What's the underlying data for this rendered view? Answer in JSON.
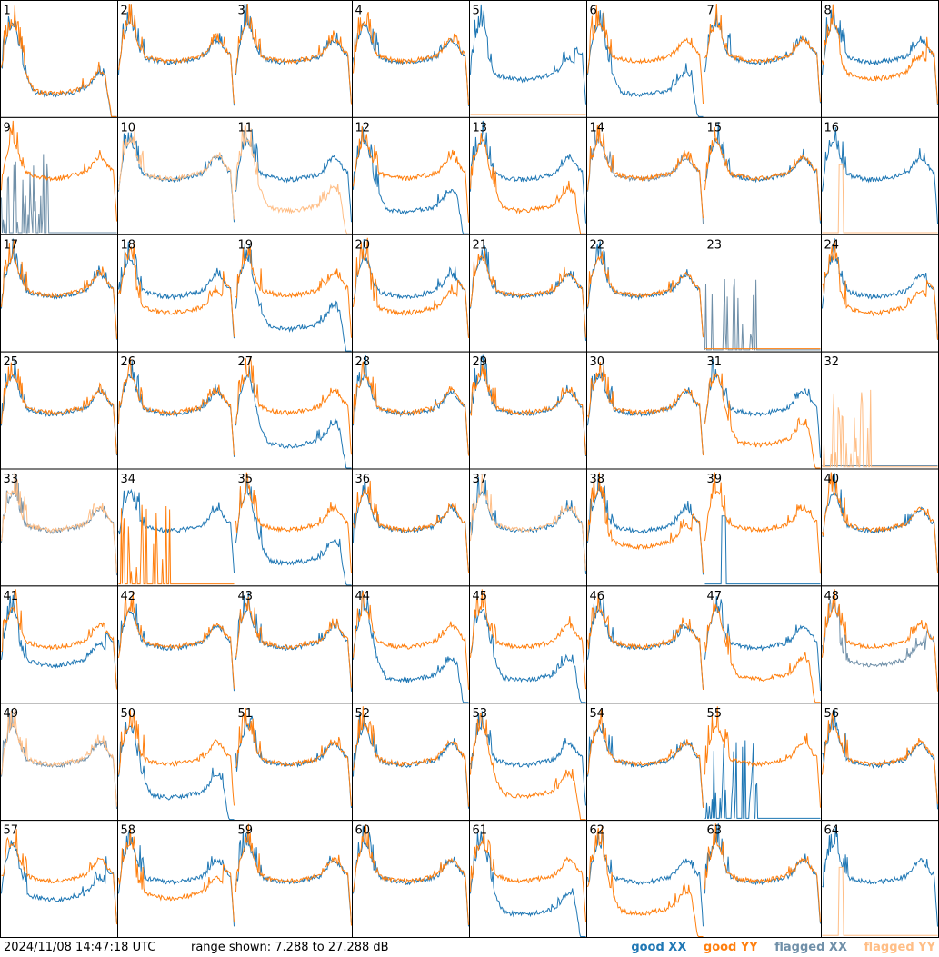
{
  "footer": {
    "timestamp": "2024/11/08 14:47:18 UTC",
    "range_text": "range shown: 7.288 to 27.288 dB"
  },
  "legend": {
    "good_xx": "good XX",
    "good_yy": "good YY",
    "flagged_xx": "flagged XX",
    "flagged_yy": "flagged YY"
  },
  "colors": {
    "good_xx": "#1f77b4",
    "good_yy": "#ff7f0e",
    "flagged_xx": "#6f8fa8",
    "flagged_yy": "#ffbe86"
  },
  "chart_data": {
    "type": "line",
    "ylim_db": [
      7.288,
      27.288
    ],
    "grid": "8x8 small multiples, no axes",
    "panels": [
      {
        "id": "1",
        "xx": "good",
        "yy": "good",
        "shape_xx": "drop",
        "shape_yy": "drop"
      },
      {
        "id": "2",
        "xx": "good",
        "yy": "good",
        "shape_xx": "normal",
        "shape_yy": "normal"
      },
      {
        "id": "3",
        "xx": "good",
        "yy": "good",
        "shape_xx": "normal",
        "shape_yy": "normal"
      },
      {
        "id": "4",
        "xx": "good",
        "yy": "good",
        "shape_xx": "normal",
        "shape_yy": "normal"
      },
      {
        "id": "5",
        "xx": "good",
        "yy": "flagged",
        "shape_xx": "dip",
        "shape_yy": "flat"
      },
      {
        "id": "6",
        "xx": "good",
        "yy": "good",
        "shape_xx": "drop",
        "shape_yy": "normal"
      },
      {
        "id": "7",
        "xx": "good",
        "yy": "good",
        "shape_xx": "normal",
        "shape_yy": "normal"
      },
      {
        "id": "8",
        "xx": "good",
        "yy": "good",
        "shape_xx": "normal",
        "shape_yy": "dip"
      },
      {
        "id": "9",
        "xx": "flagged",
        "yy": "good",
        "shape_xx": "spikes",
        "shape_yy": "normal"
      },
      {
        "id": "10",
        "xx": "good",
        "yy": "flagged",
        "shape_xx": "normal",
        "shape_yy": "normal"
      },
      {
        "id": "11",
        "xx": "good",
        "yy": "flagged",
        "shape_xx": "normal",
        "shape_yy": "drop"
      },
      {
        "id": "12",
        "xx": "good",
        "yy": "good",
        "shape_xx": "drop",
        "shape_yy": "normal"
      },
      {
        "id": "13",
        "xx": "good",
        "yy": "good",
        "shape_xx": "normal",
        "shape_yy": "drop"
      },
      {
        "id": "14",
        "xx": "flagged",
        "yy": "good",
        "shape_xx": "normal",
        "shape_yy": "normal"
      },
      {
        "id": "15",
        "xx": "good",
        "yy": "good",
        "shape_xx": "normal",
        "shape_yy": "normal"
      },
      {
        "id": "16",
        "xx": "good",
        "yy": "flagged",
        "shape_xx": "normal",
        "shape_yy": "spike"
      },
      {
        "id": "17",
        "xx": "good",
        "yy": "good",
        "shape_xx": "normal",
        "shape_yy": "normal"
      },
      {
        "id": "18",
        "xx": "good",
        "yy": "good",
        "shape_xx": "normal",
        "shape_yy": "dip"
      },
      {
        "id": "19",
        "xx": "good",
        "yy": "good",
        "shape_xx": "drop",
        "shape_yy": "normal"
      },
      {
        "id": "20",
        "xx": "good",
        "yy": "good",
        "shape_xx": "normal",
        "shape_yy": "dip"
      },
      {
        "id": "21",
        "xx": "good",
        "yy": "good",
        "shape_xx": "normal",
        "shape_yy": "normal"
      },
      {
        "id": "22",
        "xx": "good",
        "yy": "good",
        "shape_xx": "normal",
        "shape_yy": "normal"
      },
      {
        "id": "23",
        "xx": "flagged",
        "yy": "good",
        "shape_xx": "spikes",
        "shape_yy": "flat"
      },
      {
        "id": "24",
        "xx": "good",
        "yy": "good",
        "shape_xx": "normal",
        "shape_yy": "dip"
      },
      {
        "id": "25",
        "xx": "good",
        "yy": "good",
        "shape_xx": "normal",
        "shape_yy": "normal"
      },
      {
        "id": "26",
        "xx": "good",
        "yy": "good",
        "shape_xx": "normal",
        "shape_yy": "normal"
      },
      {
        "id": "27",
        "xx": "good",
        "yy": "good",
        "shape_xx": "drop",
        "shape_yy": "normal"
      },
      {
        "id": "28",
        "xx": "good",
        "yy": "good",
        "shape_xx": "normal",
        "shape_yy": "normal"
      },
      {
        "id": "29",
        "xx": "good",
        "yy": "good",
        "shape_xx": "normal",
        "shape_yy": "normal"
      },
      {
        "id": "30",
        "xx": "good",
        "yy": "good",
        "shape_xx": "normal",
        "shape_yy": "normal"
      },
      {
        "id": "31",
        "xx": "good",
        "yy": "good",
        "shape_xx": "normal",
        "shape_yy": "drop"
      },
      {
        "id": "32",
        "xx": "flagged",
        "yy": "flagged",
        "shape_xx": "flat",
        "shape_yy": "spikes"
      },
      {
        "id": "33",
        "xx": "flagged",
        "yy": "flagged",
        "shape_xx": "normal",
        "shape_yy": "normal"
      },
      {
        "id": "34",
        "xx": "good",
        "yy": "good",
        "shape_xx": "normal",
        "shape_yy": "spikes"
      },
      {
        "id": "35",
        "xx": "good",
        "yy": "good",
        "shape_xx": "drop",
        "shape_yy": "normal"
      },
      {
        "id": "36",
        "xx": "good",
        "yy": "good",
        "shape_xx": "normal",
        "shape_yy": "normal"
      },
      {
        "id": "37",
        "xx": "good",
        "yy": "flagged",
        "shape_xx": "normal",
        "shape_yy": "normal"
      },
      {
        "id": "38",
        "xx": "good",
        "yy": "good",
        "shape_xx": "normal",
        "shape_yy": "dip"
      },
      {
        "id": "39",
        "xx": "good",
        "yy": "good",
        "shape_xx": "spike",
        "shape_yy": "normal"
      },
      {
        "id": "40",
        "xx": "good",
        "yy": "good",
        "shape_xx": "normal",
        "shape_yy": "normal"
      },
      {
        "id": "41",
        "xx": "good",
        "yy": "good",
        "shape_xx": "dip",
        "shape_yy": "normal"
      },
      {
        "id": "42",
        "xx": "good",
        "yy": "good",
        "shape_xx": "normal",
        "shape_yy": "normal"
      },
      {
        "id": "43",
        "xx": "good",
        "yy": "good",
        "shape_xx": "normal",
        "shape_yy": "normal"
      },
      {
        "id": "44",
        "xx": "good",
        "yy": "good",
        "shape_xx": "drop",
        "shape_yy": "normal"
      },
      {
        "id": "45",
        "xx": "good",
        "yy": "good",
        "shape_xx": "drop",
        "shape_yy": "normal"
      },
      {
        "id": "46",
        "xx": "good",
        "yy": "good",
        "shape_xx": "normal",
        "shape_yy": "normal"
      },
      {
        "id": "47",
        "xx": "good",
        "yy": "good",
        "shape_xx": "normal",
        "shape_yy": "drop"
      },
      {
        "id": "48",
        "xx": "flagged",
        "yy": "good",
        "shape_xx": "dip",
        "shape_yy": "normal"
      },
      {
        "id": "49",
        "xx": "flagged",
        "yy": "flagged",
        "shape_xx": "normal",
        "shape_yy": "normal"
      },
      {
        "id": "50",
        "xx": "good",
        "yy": "good",
        "shape_xx": "drop",
        "shape_yy": "normal"
      },
      {
        "id": "51",
        "xx": "good",
        "yy": "good",
        "shape_xx": "normal",
        "shape_yy": "normal"
      },
      {
        "id": "52",
        "xx": "good",
        "yy": "good",
        "shape_xx": "normal",
        "shape_yy": "normal"
      },
      {
        "id": "53",
        "xx": "good",
        "yy": "good",
        "shape_xx": "normal",
        "shape_yy": "drop"
      },
      {
        "id": "54",
        "xx": "good",
        "yy": "good",
        "shape_xx": "normal",
        "shape_yy": "normal"
      },
      {
        "id": "55",
        "xx": "good",
        "yy": "good",
        "shape_xx": "spikes",
        "shape_yy": "normal"
      },
      {
        "id": "56",
        "xx": "good",
        "yy": "good",
        "shape_xx": "normal",
        "shape_yy": "normal"
      },
      {
        "id": "57",
        "xx": "good",
        "yy": "good",
        "shape_xx": "dip",
        "shape_yy": "normal"
      },
      {
        "id": "58",
        "xx": "good",
        "yy": "good",
        "shape_xx": "normal",
        "shape_yy": "dip"
      },
      {
        "id": "59",
        "xx": "good",
        "yy": "good",
        "shape_xx": "normal",
        "shape_yy": "normal"
      },
      {
        "id": "60",
        "xx": "good",
        "yy": "good",
        "shape_xx": "normal",
        "shape_yy": "normal"
      },
      {
        "id": "61",
        "xx": "good",
        "yy": "good",
        "shape_xx": "drop",
        "shape_yy": "normal"
      },
      {
        "id": "62",
        "xx": "good",
        "yy": "good",
        "shape_xx": "normal",
        "shape_yy": "drop"
      },
      {
        "id": "63",
        "xx": "good",
        "yy": "good",
        "shape_xx": "normal",
        "shape_yy": "normal"
      },
      {
        "id": "64",
        "xx": "good",
        "yy": "flagged",
        "shape_xx": "normal",
        "shape_yy": "spike"
      }
    ]
  }
}
